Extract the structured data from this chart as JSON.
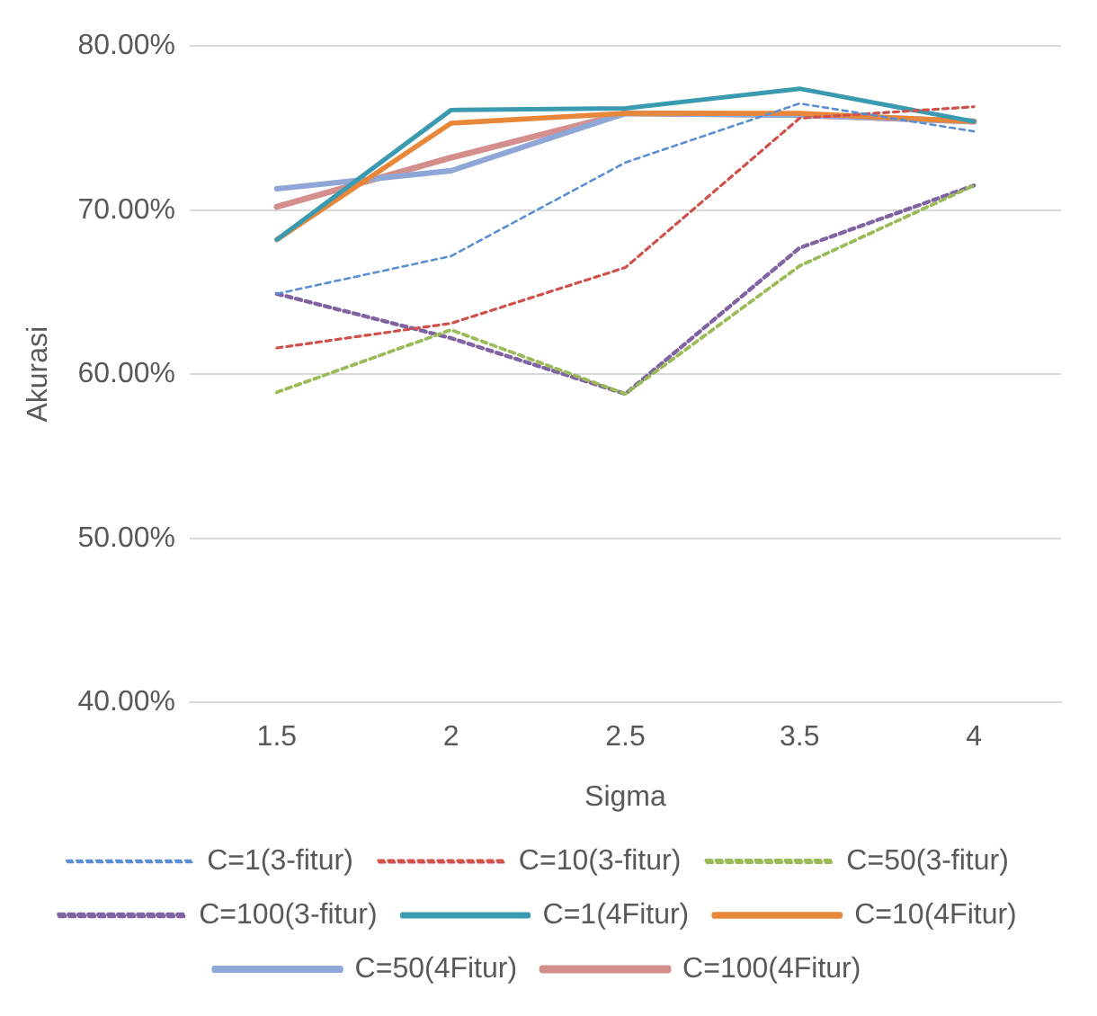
{
  "chart_data": {
    "type": "line",
    "xlabel": "Sigma",
    "ylabel": "Akurasi",
    "categories": [
      "1.5",
      "2",
      "2.5",
      "3.5",
      "4"
    ],
    "ylim": [
      40,
      80
    ],
    "yticks": [
      {
        "value": 40,
        "label": "40.00%"
      },
      {
        "value": 50,
        "label": "50.00%"
      },
      {
        "value": 60,
        "label": "60.00%"
      },
      {
        "value": 70,
        "label": "70.00%"
      },
      {
        "value": 80,
        "label": "80.00%"
      }
    ],
    "grid": "y",
    "legend": "bottom",
    "marker": "none",
    "series": [
      {
        "name": "C=1(3-fitur)",
        "color": "#5b8fd4",
        "line_style": "dashed",
        "values": [
          64.9,
          67.2,
          72.9,
          76.5,
          74.8
        ]
      },
      {
        "name": "C=10(3-fitur)",
        "color": "#d0514c",
        "line_style": "dashed",
        "values": [
          61.6,
          63.1,
          66.5,
          75.6,
          76.3
        ]
      },
      {
        "name": "C=50(3-fitur)",
        "color": "#9bbb59",
        "line_style": "dashed",
        "values": [
          58.9,
          62.7,
          58.8,
          66.6,
          71.5
        ]
      },
      {
        "name": "C=100(3-fitur)",
        "color": "#8064a2",
        "line_style": "dashed",
        "values": [
          64.9,
          62.2,
          58.8,
          67.7,
          71.5
        ]
      },
      {
        "name": "C=1(4Fitur)",
        "color": "#3a9bb0",
        "line_style": "solid",
        "values": [
          68.2,
          76.1,
          76.2,
          77.4,
          75.4
        ]
      },
      {
        "name": "C=10(4Fitur)",
        "color": "#e8873a",
        "line_style": "solid",
        "values": [
          68.2,
          75.3,
          75.9,
          75.9,
          75.4
        ]
      },
      {
        "name": "C=50(4Fitur)",
        "color": "#8fa7d6",
        "line_style": "solid",
        "values": [
          71.3,
          72.4,
          75.9,
          75.8,
          75.4
        ]
      },
      {
        "name": "C=100(4Fitur)",
        "color": "#d48f8c",
        "line_style": "solid",
        "values": [
          70.2,
          73.2,
          75.9,
          75.8,
          75.4
        ]
      }
    ]
  }
}
